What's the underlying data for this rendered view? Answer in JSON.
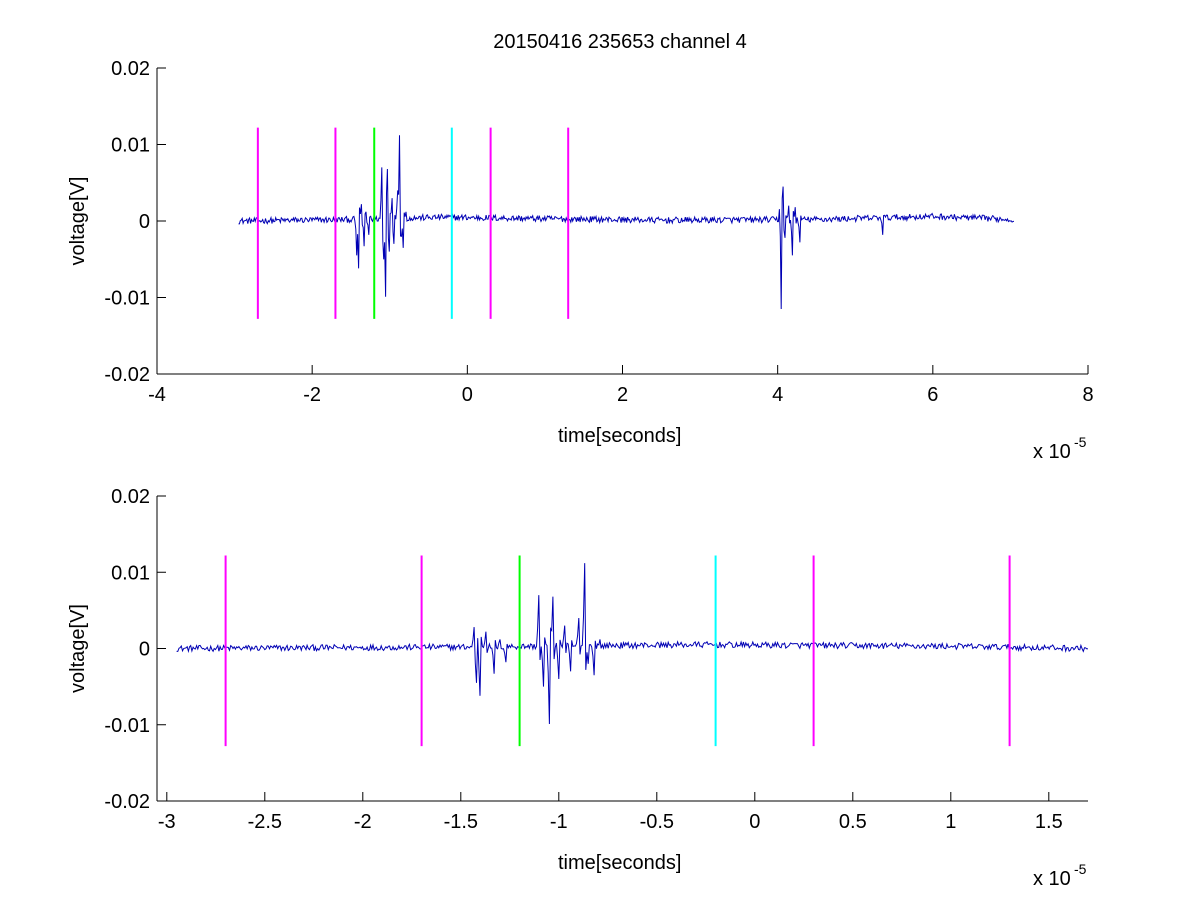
{
  "figure": {
    "title": "20150416 235653 channel 4"
  },
  "chart_data": [
    {
      "type": "line",
      "xlabel": "time[seconds]",
      "ylabel": "voltage[V]",
      "x_exponent_label": "x 10",
      "x_exponent_power": "-5",
      "x_unit_scale": 1e-05,
      "xlim": [
        -4,
        8
      ],
      "ylim": [
        -0.02,
        0.02
      ],
      "x_ticks": [
        -4,
        -2,
        0,
        2,
        4,
        6,
        8
      ],
      "x_tick_labels": [
        "-4",
        "-2",
        "0",
        "2",
        "4",
        "6",
        "8"
      ],
      "y_ticks": [
        -0.02,
        -0.01,
        0,
        0.01,
        0.02
      ],
      "y_tick_labels": [
        "-0.02",
        "-0.01",
        "0",
        "0.01",
        "0.02"
      ],
      "grid": false,
      "series": [
        {
          "color": "#0000b4",
          "x_range": [
            -2.95,
            7.05
          ],
          "baseline": [
            [
              -2.95,
              0
            ],
            [
              -1.5,
              0.0002
            ],
            [
              -0.3,
              0.0005
            ],
            [
              1.0,
              0.0003
            ],
            [
              2.5,
              0.0001
            ],
            [
              4.5,
              0.0002
            ],
            [
              6.0,
              0.0006
            ],
            [
              7.05,
              0.0002
            ]
          ],
          "noise_amplitude": 0.0004,
          "bursts": [
            {
              "t": -1.43,
              "v": 0.0028
            },
            {
              "t": -1.42,
              "v": -0.0045
            },
            {
              "t": -1.4,
              "v": -0.0062
            },
            {
              "t": -1.37,
              "v": 0.0022
            },
            {
              "t": -1.33,
              "v": -0.0033
            },
            {
              "t": -1.3,
              "v": 0.0012
            },
            {
              "t": -1.27,
              "v": -0.0018
            },
            {
              "t": -1.1,
              "v": 0.007
            },
            {
              "t": -1.08,
              "v": -0.005
            },
            {
              "t": -1.05,
              "v": -0.0099
            },
            {
              "t": -1.03,
              "v": 0.0068
            },
            {
              "t": -1.0,
              "v": -0.004
            },
            {
              "t": -0.97,
              "v": 0.003
            },
            {
              "t": -0.94,
              "v": -0.003
            },
            {
              "t": -0.9,
              "v": 0.004
            },
            {
              "t": -0.87,
              "v": 0.0112
            },
            {
              "t": -0.85,
              "v": -0.002
            },
            {
              "t": -0.82,
              "v": -0.0035
            },
            {
              "t": -0.79,
              "v": 0.0012
            },
            {
              "t": 4.03,
              "v": 0.004
            },
            {
              "t": 4.05,
              "v": -0.0115
            },
            {
              "t": 4.07,
              "v": 0.0045
            },
            {
              "t": 4.1,
              "v": -0.0022
            },
            {
              "t": 4.14,
              "v": 0.002
            },
            {
              "t": 4.19,
              "v": -0.0045
            },
            {
              "t": 4.22,
              "v": 0.0018
            },
            {
              "t": 4.28,
              "v": -0.0028
            },
            {
              "t": 5.35,
              "v": -0.0018
            }
          ]
        }
      ],
      "vlines": [
        {
          "x": -2.7,
          "color": "#ff00ff",
          "y": [
            -0.0128,
            0.0122
          ]
        },
        {
          "x": -1.7,
          "color": "#ff00ff",
          "y": [
            -0.0128,
            0.0122
          ]
        },
        {
          "x": -1.2,
          "color": "#00ff00",
          "y": [
            -0.0128,
            0.0122
          ]
        },
        {
          "x": -0.2,
          "color": "#00ffff",
          "y": [
            -0.0128,
            0.0122
          ]
        },
        {
          "x": 0.3,
          "color": "#ff00ff",
          "y": [
            -0.0128,
            0.0122
          ]
        },
        {
          "x": 1.3,
          "color": "#ff00ff",
          "y": [
            -0.0128,
            0.0122
          ]
        }
      ]
    },
    {
      "type": "line",
      "xlabel": "time[seconds]",
      "ylabel": "voltage[V]",
      "x_exponent_label": "x 10",
      "x_exponent_power": "-5",
      "x_unit_scale": 1e-05,
      "xlim": [
        -3.05,
        1.7
      ],
      "ylim": [
        -0.02,
        0.02
      ],
      "x_ticks": [
        -3,
        -2.5,
        -2,
        -1.5,
        -1,
        -0.5,
        0,
        0.5,
        1,
        1.5
      ],
      "x_tick_labels": [
        "-3",
        "-2.5",
        "-2",
        "-1.5",
        "-1",
        "-0.5",
        "0",
        "0.5",
        "1",
        "1.5"
      ],
      "y_ticks": [
        -0.02,
        -0.01,
        0,
        0.01,
        0.02
      ],
      "y_tick_labels": [
        "-0.02",
        "-0.01",
        "0",
        "0.01",
        "0.02"
      ],
      "grid": false,
      "series": [
        {
          "color": "#0000b4",
          "x_range": [
            -2.95,
            1.7
          ],
          "baseline": [
            [
              -2.95,
              0
            ],
            [
              -1.5,
              0.0002
            ],
            [
              -0.3,
              0.0005
            ],
            [
              1.0,
              0.0003
            ],
            [
              1.7,
              0
            ]
          ],
          "noise_amplitude": 0.0004,
          "bursts": [
            {
              "t": -1.43,
              "v": 0.0028
            },
            {
              "t": -1.42,
              "v": -0.0045
            },
            {
              "t": -1.4,
              "v": -0.0062
            },
            {
              "t": -1.37,
              "v": 0.0022
            },
            {
              "t": -1.33,
              "v": -0.0033
            },
            {
              "t": -1.3,
              "v": 0.0012
            },
            {
              "t": -1.27,
              "v": -0.0018
            },
            {
              "t": -1.1,
              "v": 0.007
            },
            {
              "t": -1.08,
              "v": -0.005
            },
            {
              "t": -1.05,
              "v": -0.0099
            },
            {
              "t": -1.03,
              "v": 0.0068
            },
            {
              "t": -1.0,
              "v": -0.004
            },
            {
              "t": -0.97,
              "v": 0.003
            },
            {
              "t": -0.94,
              "v": -0.003
            },
            {
              "t": -0.9,
              "v": 0.004
            },
            {
              "t": -0.87,
              "v": 0.0112
            },
            {
              "t": -0.85,
              "v": -0.002
            },
            {
              "t": -0.82,
              "v": -0.0035
            },
            {
              "t": -0.79,
              "v": 0.0012
            }
          ]
        }
      ],
      "vlines": [
        {
          "x": -2.7,
          "color": "#ff00ff",
          "y": [
            -0.0128,
            0.0122
          ]
        },
        {
          "x": -1.7,
          "color": "#ff00ff",
          "y": [
            -0.0128,
            0.0122
          ]
        },
        {
          "x": -1.2,
          "color": "#00ff00",
          "y": [
            -0.0128,
            0.0122
          ]
        },
        {
          "x": -0.2,
          "color": "#00ffff",
          "y": [
            -0.0128,
            0.0122
          ]
        },
        {
          "x": 0.3,
          "color": "#ff00ff",
          "y": [
            -0.0128,
            0.0122
          ]
        },
        {
          "x": 1.3,
          "color": "#ff00ff",
          "y": [
            -0.0128,
            0.0122
          ]
        }
      ]
    }
  ]
}
